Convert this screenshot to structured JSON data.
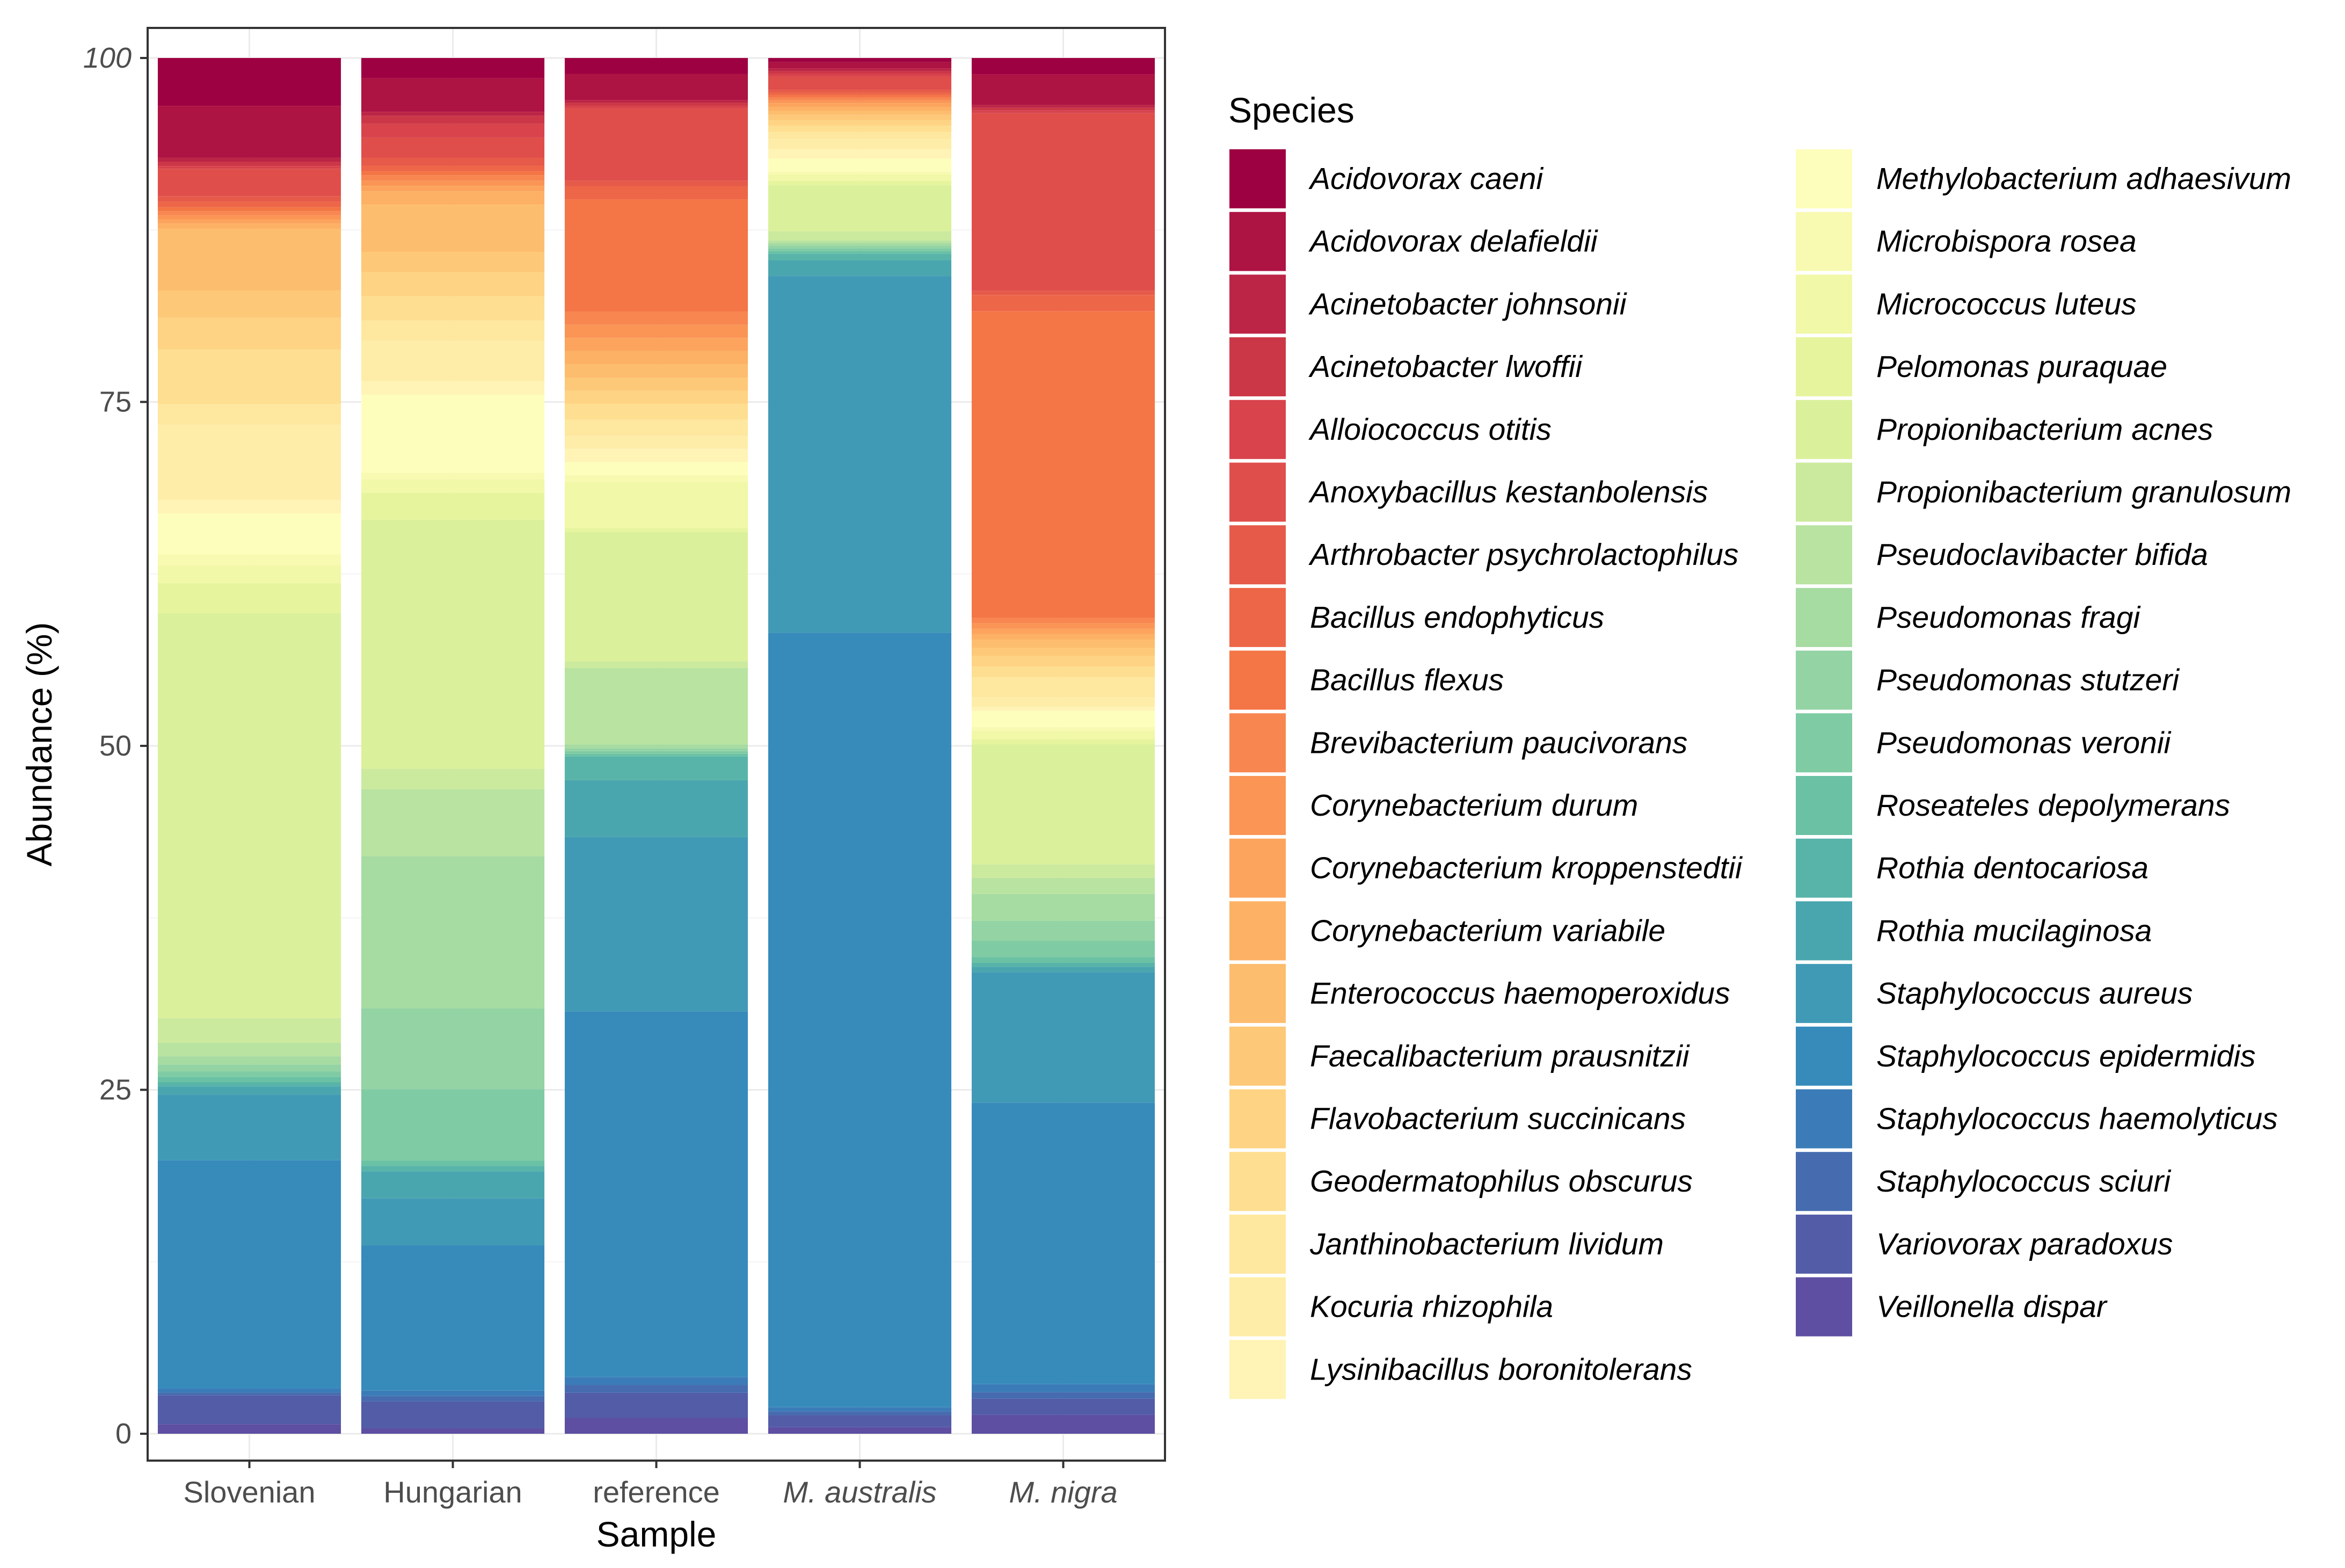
{
  "chart_data": {
    "type": "bar",
    "stacked": true,
    "title": "",
    "xlabel": "Sample",
    "ylabel": "Abundance (%)",
    "ylim": [
      0,
      100
    ],
    "yticks": [
      0,
      25,
      50,
      75,
      100
    ],
    "categories": [
      "Slovenian",
      "Hungarian",
      "reference",
      "M. australis",
      "M. nigra"
    ],
    "category_italic": [
      false,
      false,
      false,
      true,
      true
    ],
    "legend_title": "Species",
    "legend_position": "right",
    "series": [
      {
        "name": "Acidovorax caeni",
        "color": "#9E0142",
        "values": [
          3.5,
          1.5,
          1.2,
          0.3,
          1.2
        ]
      },
      {
        "name": "Acidovorax delafieldii",
        "color": "#AD1343",
        "values": [
          3.8,
          2.5,
          2.0,
          0.5,
          2.3
        ]
      },
      {
        "name": "Acinetobacter johnsonii",
        "color": "#BC2545",
        "values": [
          0.3,
          0.3,
          0.2,
          0.2,
          0.2
        ]
      },
      {
        "name": "Acinetobacter lwoffii",
        "color": "#CC3747",
        "values": [
          0.3,
          0.6,
          0.2,
          0.2,
          0.2
        ]
      },
      {
        "name": "Alloiococcus otitis",
        "color": "#D8434C",
        "values": [
          0.2,
          1.0,
          0.2,
          0.2,
          0.2
        ]
      },
      {
        "name": "Anoxybacillus kestanbolensis",
        "color": "#DF4E4B",
        "values": [
          2.0,
          1.5,
          5.5,
          1.0,
          13.2
        ]
      },
      {
        "name": "Arthrobacter psychrolactophilus",
        "color": "#E65A4A",
        "values": [
          0.4,
          0.6,
          0.4,
          0.2,
          0.3
        ]
      },
      {
        "name": "Bacillus endophyticus",
        "color": "#ED6648",
        "values": [
          0.4,
          0.4,
          1.0,
          0.2,
          1.2
        ]
      },
      {
        "name": "Bacillus flexus",
        "color": "#F47545",
        "values": [
          0.3,
          0.3,
          8.5,
          0.2,
          22.8
        ]
      },
      {
        "name": "Brevibacterium paucivorans",
        "color": "#F88650",
        "values": [
          0.3,
          0.4,
          1.0,
          0.2,
          0.4
        ]
      },
      {
        "name": "Corynebacterium durum",
        "color": "#FA9556",
        "values": [
          0.3,
          0.4,
          1.0,
          0.2,
          0.4
        ]
      },
      {
        "name": "Corynebacterium kroppenstedtii",
        "color": "#FCA45D",
        "values": [
          0.3,
          0.4,
          1.0,
          0.3,
          0.4
        ]
      },
      {
        "name": "Corynebacterium variabile",
        "color": "#FDB164",
        "values": [
          0.4,
          1.0,
          1.0,
          0.3,
          0.4
        ]
      },
      {
        "name": "Enterococcus haemoperoxidus",
        "color": "#FDBD6E",
        "values": [
          4.5,
          3.5,
          1.0,
          0.3,
          0.6
        ]
      },
      {
        "name": "Faecalibacterium prausnitzii",
        "color": "#FDC878",
        "values": [
          2.0,
          1.5,
          1.0,
          0.4,
          0.6
        ]
      },
      {
        "name": "Flavobacterium succinicans",
        "color": "#FED383",
        "values": [
          2.3,
          1.8,
          1.0,
          0.4,
          0.8
        ]
      },
      {
        "name": "Geodermatophilus obscurus",
        "color": "#FEDE90",
        "values": [
          4.0,
          1.8,
          1.2,
          0.5,
          0.8
        ]
      },
      {
        "name": "Janthinobacterium lividum",
        "color": "#FEE79E",
        "values": [
          1.5,
          1.5,
          1.2,
          0.5,
          1.5
        ]
      },
      {
        "name": "Kocuria rhizophila",
        "color": "#FEEDA8",
        "values": [
          5.5,
          3.0,
          1.0,
          0.8,
          0.7
        ]
      },
      {
        "name": "Lysinibacillus boronitolerans",
        "color": "#FFF3B5",
        "values": [
          1.0,
          1.0,
          1.0,
          0.7,
          0.3
        ]
      },
      {
        "name": "Methylobacterium adhaesivum",
        "color": "#FEFEBC",
        "values": [
          3.0,
          5.8,
          1.0,
          1.0,
          1.2
        ]
      },
      {
        "name": "Microbispora rosea",
        "color": "#F8FAB2",
        "values": [
          0.8,
          0.5,
          0.5,
          0.2,
          0.3
        ]
      },
      {
        "name": "Micrococcus luteus",
        "color": "#F1F8A7",
        "values": [
          1.3,
          1.0,
          3.5,
          0.5,
          0.6
        ]
      },
      {
        "name": "Pelomonas puraquae",
        "color": "#E6F59D",
        "values": [
          2.2,
          2.0,
          0.3,
          0.3,
          0.4
        ]
      },
      {
        "name": "Propionibacterium acnes",
        "color": "#DBF09B",
        "values": [
          29.6,
          18.5,
          9.8,
          3.5,
          8.9
        ]
      },
      {
        "name": "Propionibacterium granulosum",
        "color": "#CCEA9D",
        "values": [
          1.8,
          1.5,
          0.5,
          0.7,
          1.0
        ]
      },
      {
        "name": "Pseudoclavibacter bifida",
        "color": "#B9E3A0",
        "values": [
          1.0,
          5.0,
          5.8,
          0.2,
          1.2
        ]
      },
      {
        "name": "Pseudomonas fragi",
        "color": "#A6DBA2",
        "values": [
          0.6,
          11.3,
          0.3,
          0.2,
          2.0
        ]
      },
      {
        "name": "Pseudomonas stutzeri",
        "color": "#93D3A4",
        "values": [
          0.5,
          6.0,
          0.2,
          0.2,
          1.5
        ]
      },
      {
        "name": "Pseudomonas veronii",
        "color": "#7FCBA4",
        "values": [
          0.4,
          5.3,
          0.2,
          0.2,
          1.2
        ]
      },
      {
        "name": "Roseateles depolymerans",
        "color": "#6AC1A4",
        "values": [
          0.4,
          0.4,
          0.2,
          0.2,
          0.4
        ]
      },
      {
        "name": "Rothia dentocariosa",
        "color": "#58B4A9",
        "values": [
          0.3,
          0.4,
          1.8,
          0.5,
          0.3
        ]
      },
      {
        "name": "Rothia mucilaginosa",
        "color": "#4AA6AE",
        "values": [
          0.6,
          2.0,
          4.3,
          1.2,
          0.4
        ]
      },
      {
        "name": "Staphylococcus aureus",
        "color": "#419AB5",
        "values": [
          4.8,
          3.5,
          13.2,
          27.0,
          9.7
        ]
      },
      {
        "name": "Staphylococcus epidermidis",
        "color": "#378BBB",
        "values": [
          16.7,
          10.8,
          27.7,
          58.6,
          20.9
        ]
      },
      {
        "name": "Staphylococcus haemolyticus",
        "color": "#3B7CB8",
        "values": [
          0.3,
          0.4,
          0.6,
          0.3,
          0.6
        ]
      },
      {
        "name": "Staphylococcus sciuri",
        "color": "#466CAF",
        "values": [
          0.2,
          0.4,
          0.6,
          0.3,
          0.5
        ]
      },
      {
        "name": "Variovorax paradoxus",
        "color": "#535CA7",
        "values": [
          2.1,
          2.0,
          1.9,
          0.9,
          1.2
        ]
      },
      {
        "name": "Veillonella dispar",
        "color": "#5E4FA2",
        "values": [
          0.7,
          0.4,
          1.2,
          0.5,
          1.4
        ]
      }
    ]
  }
}
